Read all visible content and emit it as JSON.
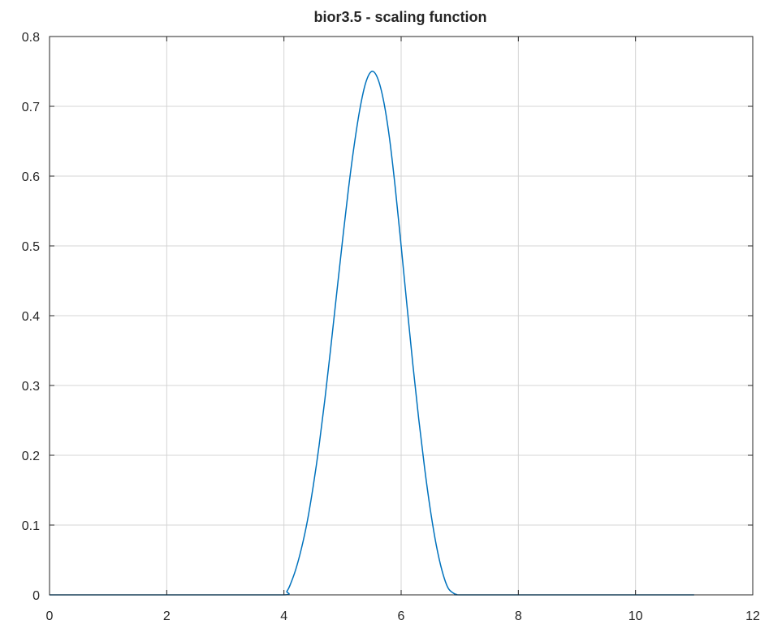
{
  "chart_data": {
    "type": "line",
    "title": "bior3.5 - scaling function",
    "xlabel": "",
    "ylabel": "",
    "xlim": [
      0,
      12
    ],
    "ylim": [
      0,
      0.8
    ],
    "xticks": [
      0,
      2,
      4,
      6,
      8,
      10,
      12
    ],
    "yticks": [
      0,
      0.1,
      0.2,
      0.3,
      0.4,
      0.5,
      0.6,
      0.7,
      0.8
    ],
    "xtick_labels": [
      "0",
      "2",
      "4",
      "6",
      "8",
      "10",
      "12"
    ],
    "ytick_labels": [
      "0",
      "0.1",
      "0.2",
      "0.3",
      "0.4",
      "0.5",
      "0.6",
      "0.7",
      "0.8"
    ],
    "grid": true,
    "series": [
      {
        "color": "#0072bd",
        "x": [
          0,
          1,
          2,
          3,
          4,
          4.05,
          4.1,
          4.2,
          4.3,
          4.4,
          4.5,
          4.6,
          4.7,
          4.8,
          4.9,
          5.0,
          5.1,
          5.2,
          5.3,
          5.4,
          5.5,
          5.6,
          5.7,
          5.8,
          5.9,
          6.0,
          6.1,
          6.2,
          6.3,
          6.4,
          6.5,
          6.6,
          6.7,
          6.8,
          6.9,
          6.95,
          7.0,
          8,
          9,
          10,
          11
        ],
        "y": [
          0,
          0,
          0,
          0,
          0,
          0.005,
          0.013,
          0.036,
          0.067,
          0.106,
          0.156,
          0.214,
          0.281,
          0.355,
          0.432,
          0.508,
          0.581,
          0.645,
          0.698,
          0.735,
          0.75,
          0.74,
          0.708,
          0.655,
          0.583,
          0.5,
          0.414,
          0.33,
          0.252,
          0.182,
          0.121,
          0.071,
          0.034,
          0.01,
          0.002,
          0.0005,
          0,
          0,
          0,
          0,
          0
        ]
      }
    ]
  }
}
